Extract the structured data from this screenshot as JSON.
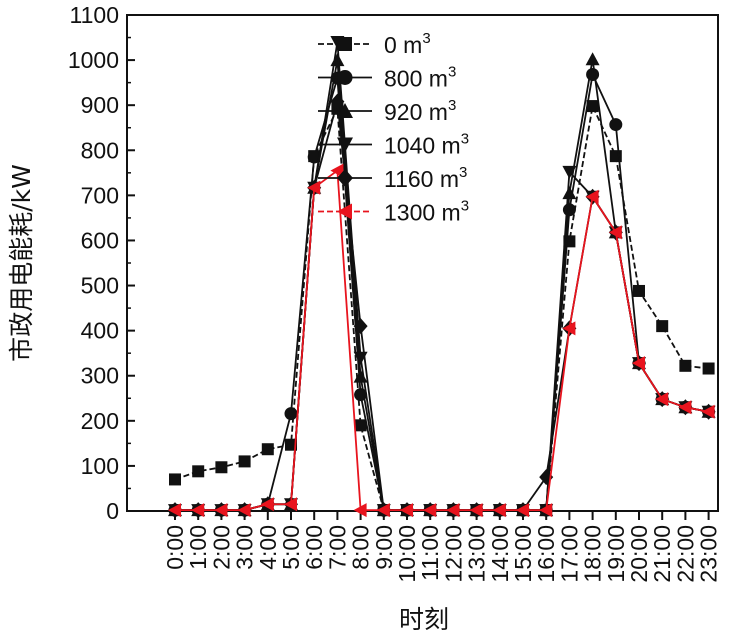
{
  "chart_data": {
    "type": "line",
    "title": "",
    "xlabel": "时刻",
    "ylabel": "市政用电能耗/kW",
    "ylim": [
      0,
      1100
    ],
    "yticks": [
      0,
      100,
      200,
      300,
      400,
      500,
      600,
      700,
      800,
      900,
      1000,
      1100
    ],
    "categories": [
      "0:00",
      "1:00",
      "2:00",
      "3:00",
      "4:00",
      "5:00",
      "6:00",
      "7:00",
      "8:00",
      "9:00",
      "10:00",
      "11:00",
      "12:00",
      "13:00",
      "14:00",
      "15:00",
      "16:00",
      "17:00",
      "18:00",
      "19:00",
      "20:00",
      "21:00",
      "22:00",
      "23:00"
    ],
    "legend_position": "top-center",
    "legend_superscript": "3",
    "series": [
      {
        "name": "0 m",
        "marker": "square",
        "color": "#111111",
        "values": [
          70,
          88,
          97,
          110,
          137,
          147,
          787,
          892,
          190,
          2,
          2,
          2,
          2,
          2,
          2,
          2,
          2,
          598,
          898,
          787,
          488,
          410,
          322,
          316
        ]
      },
      {
        "name": "800 m",
        "marker": "circle",
        "color": "#111111",
        "values": [
          2,
          2,
          2,
          2,
          15,
          216,
          785,
          960,
          258,
          2,
          2,
          2,
          2,
          2,
          2,
          2,
          2,
          668,
          968,
          857,
          328,
          248,
          230,
          220
        ]
      },
      {
        "name": "920 m",
        "marker": "triangle-up",
        "color": "#111111",
        "values": [
          2,
          2,
          2,
          2,
          15,
          15,
          717,
          1000,
          298,
          2,
          2,
          2,
          2,
          2,
          2,
          2,
          2,
          705,
          1002,
          618,
          328,
          248,
          230,
          220
        ]
      },
      {
        "name": "1040 m",
        "marker": "triangle-down",
        "color": "#111111",
        "values": [
          2,
          2,
          2,
          2,
          15,
          15,
          717,
          1040,
          340,
          2,
          2,
          2,
          2,
          2,
          2,
          2,
          2,
          752,
          697,
          618,
          328,
          248,
          230,
          220
        ]
      },
      {
        "name": "1160 m",
        "marker": "diamond",
        "color": "#111111",
        "values": [
          2,
          2,
          2,
          2,
          15,
          15,
          717,
          908,
          410,
          2,
          2,
          2,
          2,
          2,
          2,
          2,
          75,
          405,
          697,
          618,
          328,
          248,
          230,
          220
        ]
      },
      {
        "name": "1300 m",
        "marker": "triangle-left",
        "color": "#e8141e",
        "values": [
          2,
          2,
          2,
          2,
          15,
          15,
          717,
          755,
          2,
          2,
          2,
          2,
          2,
          2,
          2,
          2,
          2,
          405,
          697,
          618,
          328,
          248,
          230,
          220
        ]
      }
    ]
  }
}
